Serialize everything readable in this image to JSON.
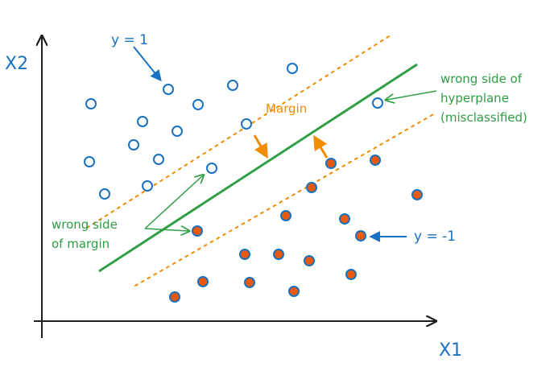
{
  "colors": {
    "axis": "#1e1e1e",
    "blue": "#1971c2",
    "green": "#2f9e44",
    "orange": "#f08c00",
    "red": "#e8590c"
  },
  "labels": {
    "x_axis": "X1",
    "y_axis": "X2",
    "positive_class": "y = 1",
    "negative_class": "y = -1",
    "margin": "Margin",
    "wrong_margin_line1": "wrong side",
    "wrong_margin_line2": "of margin",
    "wrong_hyperplane_line1": "wrong side of",
    "wrong_hyperplane_line2": "hyperplane",
    "wrong_hyperplane_line3": "(misclassified)"
  },
  "legend": {
    "blue_class": "y = 1 (hollow blue circles)",
    "red_class": "y = -1 (filled orange circles)"
  },
  "blue_count": 19,
  "orange_count": 20
}
